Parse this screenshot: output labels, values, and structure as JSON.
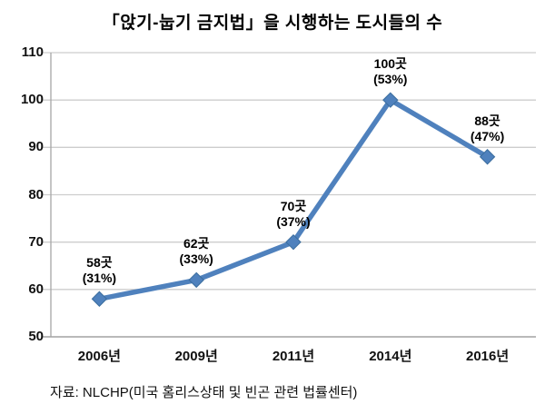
{
  "title": "「앉기-눕기 금지법」을 시행하는 도시들의 수",
  "source": "자료: NLCHP(미국 홈리스상태 및 빈곤 관련 법률센터)",
  "colors": {
    "line": "#4F81BD",
    "marker_fill": "#4F81BD",
    "marker_edge": "#3A6D9E",
    "grid": "#CDCDCD",
    "axis": "#A6A6A6",
    "text": "#111111"
  },
  "chart_data": {
    "type": "line",
    "title": "「앉기-눕기 금지법」을 시행하는 도시들의 수",
    "categories": [
      "2006년",
      "2009년",
      "2011년",
      "2014년",
      "2016년"
    ],
    "values": [
      58,
      62,
      70,
      100,
      88
    ],
    "data_labels": [
      [
        "58곳",
        "(31%)"
      ],
      [
        "62곳",
        "(33%)"
      ],
      [
        "70곳",
        "(37%)"
      ],
      [
        "100곳",
        "(53%)"
      ],
      [
        "88곳",
        "(47%)"
      ]
    ],
    "xlabel": "",
    "ylabel": "",
    "ylim": [
      50,
      110
    ],
    "yticks": [
      50,
      60,
      70,
      80,
      90,
      100,
      110
    ],
    "grid": true,
    "legend": "none",
    "marker": "diamond",
    "source": "자료: NLCHP(미국 홈리스상태 및 빈곤 관련 법률센터)"
  }
}
